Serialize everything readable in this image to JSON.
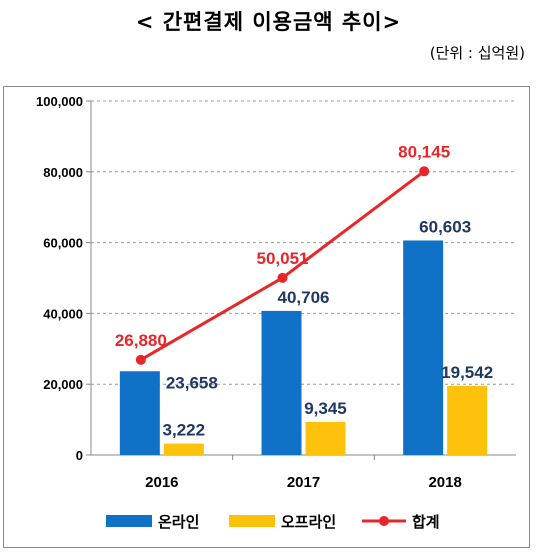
{
  "title": "< 간편결제 이용금액 추이>",
  "unit": "(단위 : 십억원)",
  "colors": {
    "online": "#1072c6",
    "offline": "#fec10c",
    "total": "#e8262a",
    "label_dark": "#1f3864"
  },
  "chart_data": {
    "type": "bar",
    "categories": [
      "2016",
      "2017",
      "2018"
    ],
    "series": [
      {
        "name": "온라인",
        "type": "bar",
        "values": [
          23658,
          40706,
          60603
        ],
        "labels": [
          "23,658",
          "40,706",
          "60,603"
        ]
      },
      {
        "name": "오프라인",
        "type": "bar",
        "values": [
          3222,
          9345,
          19542
        ],
        "labels": [
          "3,222",
          "9,345",
          "19,542"
        ]
      },
      {
        "name": "합계",
        "type": "line",
        "values": [
          26880,
          50051,
          80145
        ],
        "labels": [
          "26,880",
          "50,051",
          "80,145"
        ]
      }
    ],
    "yticks": [
      "0",
      "20,000",
      "40,000",
      "60,000",
      "80,000",
      "100,000"
    ],
    "ylim": [
      0,
      100000
    ],
    "grid": true,
    "legend": "bottom"
  }
}
